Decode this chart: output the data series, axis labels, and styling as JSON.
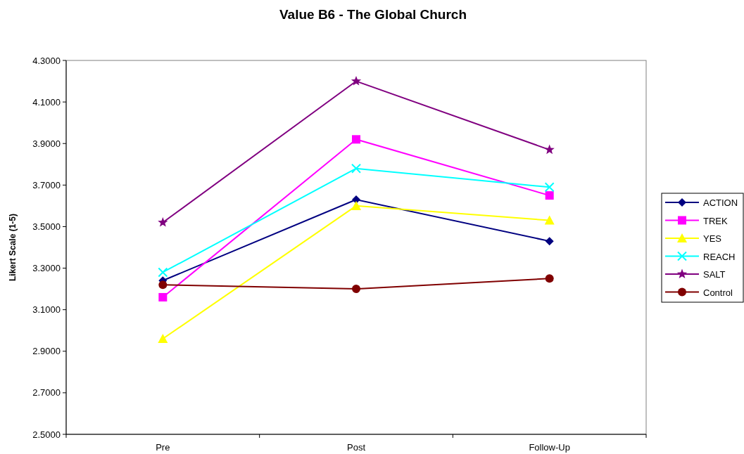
{
  "chart_data": {
    "type": "line",
    "title": "Value B6 - The Global Church",
    "ylabel": "Likert Scale (1-5)",
    "categories": [
      "Pre",
      "Post",
      "Follow-Up"
    ],
    "ylim": [
      2.5,
      4.3
    ],
    "yticks": [
      {
        "value": 2.5,
        "label": "2.5000"
      },
      {
        "value": 2.7,
        "label": "2.7000"
      },
      {
        "value": 2.9,
        "label": "2.9000"
      },
      {
        "value": 3.1,
        "label": "3.1000"
      },
      {
        "value": 3.3,
        "label": "3.3000"
      },
      {
        "value": 3.5,
        "label": "3.5000"
      },
      {
        "value": 3.7,
        "label": "3.7000"
      },
      {
        "value": 3.9,
        "label": "3.9000"
      },
      {
        "value": 4.1,
        "label": "4.1000"
      },
      {
        "value": 4.3,
        "label": "4.3000"
      }
    ],
    "grid": false,
    "legend": "right",
    "series": [
      {
        "name": "ACTION",
        "color": "#000080",
        "marker": "diamond",
        "values": [
          3.24,
          3.63,
          3.43
        ]
      },
      {
        "name": "TREK",
        "color": "#ff00ff",
        "marker": "square",
        "values": [
          3.16,
          3.92,
          3.65
        ]
      },
      {
        "name": "YES",
        "color": "#ffff00",
        "marker": "triangle",
        "values": [
          2.96,
          3.6,
          3.53
        ]
      },
      {
        "name": "REACH",
        "color": "#00ffff",
        "marker": "cross",
        "values": [
          3.28,
          3.78,
          3.69
        ]
      },
      {
        "name": "SALT",
        "color": "#800080",
        "marker": "star",
        "values": [
          3.52,
          4.2,
          3.87
        ]
      },
      {
        "name": "Control",
        "color": "#800000",
        "marker": "circle",
        "values": [
          3.22,
          3.2,
          3.25
        ]
      }
    ]
  }
}
